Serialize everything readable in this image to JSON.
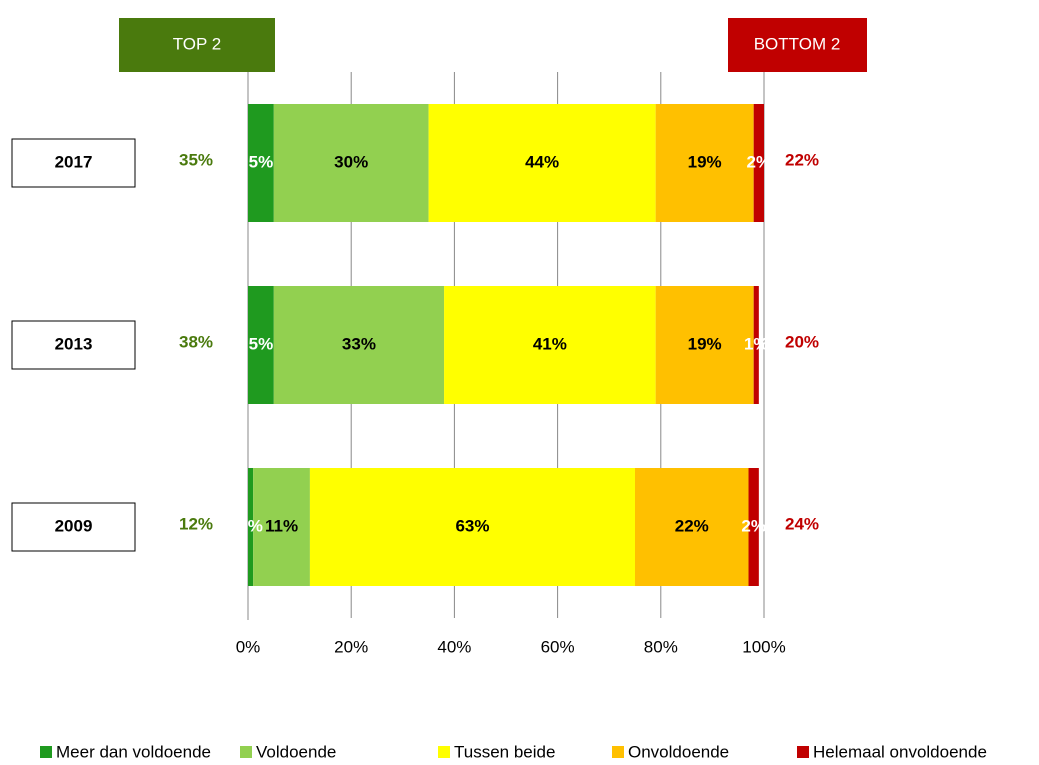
{
  "chart_data": {
    "type": "stacked-barh",
    "categories": [
      "2017",
      "2013",
      "2009"
    ],
    "series": [
      {
        "name": "Meer dan voldoende",
        "color": "#1f9a1f",
        "values": [
          5,
          5,
          1
        ],
        "value_labels": [
          "5%",
          "5%",
          "1%"
        ],
        "label_color": "#ffffff"
      },
      {
        "name": "Voldoende",
        "color": "#92d050",
        "values": [
          30,
          33,
          11
        ],
        "value_labels": [
          "30%",
          "33%",
          "11%"
        ],
        "label_color": "#000000"
      },
      {
        "name": "Tussen beide",
        "color": "#ffff00",
        "values": [
          44,
          41,
          63
        ],
        "value_labels": [
          "44%",
          "41%",
          "63%"
        ],
        "label_color": "#000000"
      },
      {
        "name": "Onvoldoende",
        "color": "#ffc000",
        "values": [
          19,
          19,
          22
        ],
        "value_labels": [
          "19%",
          "19%",
          "22%"
        ],
        "label_color": "#000000"
      },
      {
        "name": "Helemaal onvoldoende",
        "color": "#c00000",
        "values": [
          2,
          1,
          2
        ],
        "value_labels": [
          "2%",
          "1%",
          "2%"
        ],
        "label_color": "#ffffff"
      }
    ],
    "top2": {
      "label": "TOP 2",
      "color": "#4a7a0d",
      "values": [
        35,
        38,
        12
      ],
      "value_labels": [
        "35%",
        "38%",
        "12%"
      ]
    },
    "bottom2": {
      "label": "BOTTOM 2",
      "color": "#c00000",
      "values": [
        22,
        20,
        24
      ],
      "value_labels": [
        "22%",
        "20%",
        "24%"
      ]
    },
    "xlim": [
      0,
      100
    ],
    "xticks": [
      {
        "value": 0,
        "label": "0%"
      },
      {
        "value": 20,
        "label": "20%"
      },
      {
        "value": 40,
        "label": "40%"
      },
      {
        "value": 60,
        "label": "60%"
      },
      {
        "value": 80,
        "label": "80%"
      },
      {
        "value": 100,
        "label": "100%"
      }
    ],
    "grid": true,
    "legend": "bottom"
  }
}
